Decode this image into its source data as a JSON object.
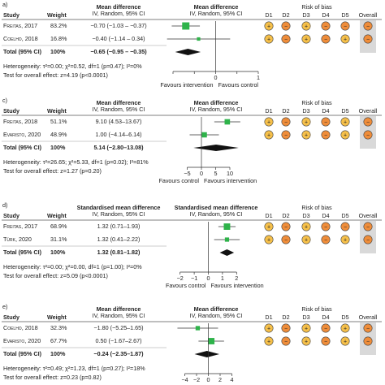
{
  "colors": {
    "square": "#2eb34a",
    "low": "#f6c04a",
    "high": "#ef8d3a",
    "overall_bg": "#d9d9d9"
  },
  "common": {
    "col_study": "Study",
    "col_weight": "Weight",
    "col_ci": "IV, Random, 95% CI",
    "risk_title": "Risk of bias",
    "d_labels": [
      "D1",
      "D2",
      "D3",
      "D4",
      "D5"
    ],
    "overall": "Overall",
    "total_label": "Total (95% CI)",
    "total_weight": "100%"
  },
  "chart_data": [
    {
      "panel_label": "a)",
      "type": "forest",
      "measure": "Mean difference",
      "xlim": [
        -1,
        1
      ],
      "ticks": [
        -1,
        -0.5,
        0,
        0.5,
        1
      ],
      "tick_labels": [
        "",
        "",
        "0",
        "",
        "1"
      ],
      "favours_left": "Favours intervention",
      "favours_right": "Favours control",
      "studies": [
        {
          "name": "Freitas, 2017",
          "weight": "83.2%",
          "md": -0.7,
          "lo": -1.03,
          "hi": -0.37,
          "text": "−0.70 (−1.03 – −0.37)",
          "rob": [
            "low",
            "high",
            "low",
            "high",
            "high",
            "high"
          ]
        },
        {
          "name": "Coelho, 2018",
          "weight": "16.8%",
          "md": -0.4,
          "lo": -1.14,
          "hi": 0.34,
          "text": "−0.40 (−1.14 – 0.34)",
          "rob": [
            "low",
            "high",
            "low",
            "high",
            "low",
            "high"
          ]
        }
      ],
      "total": {
        "md": -0.65,
        "lo": -0.95,
        "hi": -0.35,
        "text": "−0.65 (−0.95 – −0.35)"
      },
      "heterogeneity": "Heterogeneity: τ²=0.00; χ²=0.52, df=1 (p=0.47); I²=0%",
      "overall_test": "Test for overall effect: z=4.19 (p<0.0001)"
    },
    {
      "panel_label": "c)",
      "type": "forest",
      "measure": "Mean difference",
      "xlim": [
        -10,
        20
      ],
      "ticks": [
        -5,
        0,
        5,
        10
      ],
      "tick_labels": [
        "−5",
        "0",
        "5",
        "10"
      ],
      "favours_left": "Favours control",
      "favours_right": "Favours intervention",
      "studies": [
        {
          "name": "Freitas, 2018",
          "weight": "51.1%",
          "md": 9.1,
          "lo": 4.53,
          "hi": 13.67,
          "text": "9.10 (4.53–13.67)",
          "rob": [
            "low",
            "high",
            "low",
            "high",
            "low",
            "high"
          ]
        },
        {
          "name": "Evaristo, 2020",
          "weight": "48.9%",
          "md": 1.0,
          "lo": -4.14,
          "hi": 6.14,
          "text": "1.00 (−4.14–6.14)",
          "rob": [
            "low",
            "high",
            "low",
            "high",
            "low",
            "high"
          ]
        }
      ],
      "total": {
        "md": 5.14,
        "lo": -2.8,
        "hi": 13.08,
        "text": "5.14 (−2.80–13.08)"
      },
      "heterogeneity": "Heterogeneity: τ²=26.65; χ²=5.33, df=1 (p=0.02); I²=81%",
      "overall_test": "Test for overall effect: z=1.27 (p=0.20)"
    },
    {
      "panel_label": "d)",
      "type": "forest",
      "measure": "Standardised mean difference",
      "xlim": [
        -2.5,
        2.5
      ],
      "ticks": [
        -2,
        -1,
        0,
        1,
        2
      ],
      "tick_labels": [
        "−2",
        "−1",
        "0",
        "1",
        "2"
      ],
      "favours_left": "Favours control",
      "favours_right": "Favours intervention",
      "studies": [
        {
          "name": "Freitas, 2017",
          "weight": "68.9%",
          "md": 1.32,
          "lo": 0.71,
          "hi": 1.93,
          "text": "1.32 (0.71–1.93)",
          "rob": [
            "low",
            "high",
            "low",
            "high",
            "high",
            "high"
          ]
        },
        {
          "name": "Türk, 2020",
          "weight": "31.1%",
          "md": 1.32,
          "lo": 0.41,
          "hi": 2.22,
          "text": "1.32 (0.41–2.22)",
          "rob": [
            "low",
            "high",
            "low",
            "high",
            "low",
            "high"
          ]
        }
      ],
      "total": {
        "md": 1.32,
        "lo": 0.81,
        "hi": 1.82,
        "text": "1.32 (0.81–1.82)"
      },
      "heterogeneity": "Heterogeneity: τ²=0.00; χ²=0.00, df=1 (p=1.00); I²=0%",
      "overall_test": "Test for overall effect: z=5.09 (p<0.0001)"
    },
    {
      "panel_label": "e)",
      "type": "forest",
      "measure": "Mean difference",
      "xlim": [
        -6,
        6
      ],
      "ticks": [
        -4,
        -2,
        0,
        2,
        4
      ],
      "tick_labels": [
        "−4",
        "−2",
        "0",
        "2",
        "4"
      ],
      "favours_left": "",
      "favours_right": "",
      "studies": [
        {
          "name": "Coelho, 2018",
          "weight": "32.3%",
          "md": -1.8,
          "lo": -5.25,
          "hi": 1.65,
          "text": "−1.80 (−5.25–1.65)",
          "rob": [
            "low",
            "high",
            "low",
            "high",
            "low",
            "high"
          ]
        },
        {
          "name": "Evaristo, 2020",
          "weight": "67.7%",
          "md": 0.5,
          "lo": -1.67,
          "hi": 2.67,
          "text": "0.50 (−1.67–2.67)",
          "rob": [
            "low",
            "high",
            "low",
            "high",
            "low",
            "high"
          ]
        }
      ],
      "total": {
        "md": -0.24,
        "lo": -2.35,
        "hi": 1.87,
        "text": "−0.24 (−2.35–1.87)"
      },
      "heterogeneity": "Heterogeneity: τ²=0.49; χ²=1.23, df=1 (p=0.27); I²=18%",
      "overall_test": "Test for overall effect: z=0.23 (p=0.82)"
    }
  ]
}
